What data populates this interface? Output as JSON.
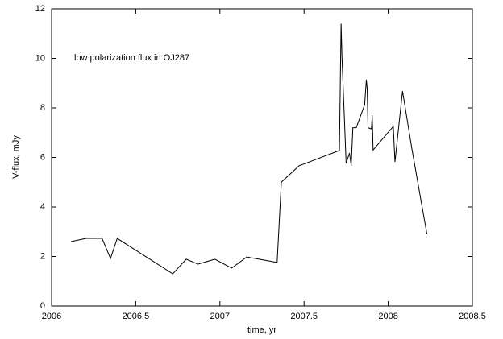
{
  "chart_data": {
    "type": "line",
    "annotation": "low polarization flux in OJ287",
    "x_label": "time, yr",
    "y_label": "V-flux, mJy",
    "color": "#000000",
    "x": [
      2006.115,
      2006.206,
      2006.3,
      2006.35,
      2006.39,
      2006.72,
      2006.8,
      2006.87,
      2006.97,
      2007.07,
      2007.16,
      2007.34,
      2007.365,
      2007.47,
      2007.71,
      2007.72,
      2007.725,
      2007.75,
      2007.77,
      2007.78,
      2007.79,
      2007.81,
      2007.86,
      2007.87,
      2007.875,
      2007.88,
      2007.9,
      2007.905,
      2007.91,
      2008.03,
      2008.04,
      2008.085,
      2008.14,
      2008.23
    ],
    "values": [
      2.6,
      2.73,
      2.73,
      1.92,
      2.73,
      1.3,
      1.89,
      1.69,
      1.89,
      1.53,
      1.98,
      1.76,
      5.0,
      5.66,
      6.28,
      11.4,
      10.1,
      5.76,
      6.18,
      5.66,
      7.2,
      7.2,
      8.13,
      9.14,
      8.78,
      7.2,
      7.15,
      7.7,
      6.3,
      7.25,
      5.82,
      8.68,
      6.37,
      2.9
    ],
    "xlim": [
      2006,
      2008.5
    ],
    "xticks": [
      2006,
      2006.5,
      2007,
      2007.5,
      2008,
      2008.5
    ],
    "ylim": [
      0,
      12
    ],
    "yticks": [
      0,
      2,
      4,
      6,
      8,
      10,
      12
    ]
  }
}
